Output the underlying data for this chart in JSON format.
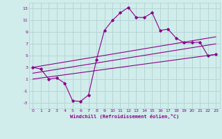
{
  "bg_color": "#d0eceb",
  "grid_color": "#b0d4d3",
  "line_color": "#880088",
  "xlabel": "Windchill (Refroidissement éolien,°C)",
  "xlim": [
    -0.5,
    23.5
  ],
  "ylim": [
    -4.0,
    14.0
  ],
  "yticks": [
    -3,
    -1,
    1,
    3,
    5,
    7,
    9,
    11,
    13
  ],
  "xticks": [
    0,
    1,
    2,
    3,
    4,
    5,
    6,
    7,
    8,
    9,
    10,
    11,
    12,
    13,
    14,
    15,
    16,
    17,
    18,
    19,
    20,
    21,
    22,
    23
  ],
  "curve1_x": [
    0,
    1,
    2,
    3,
    4,
    5,
    6,
    7,
    8,
    9,
    10,
    11,
    12,
    13,
    14,
    15,
    16,
    17,
    18,
    19,
    20,
    21,
    22,
    23
  ],
  "curve1_y": [
    3.0,
    2.7,
    1.0,
    1.2,
    0.3,
    -2.7,
    -2.8,
    -1.7,
    4.3,
    9.3,
    11.0,
    12.3,
    13.2,
    11.5,
    11.5,
    12.3,
    9.3,
    9.5,
    8.0,
    7.2,
    7.2,
    7.3,
    5.0,
    5.2
  ],
  "line1_x": [
    0,
    23
  ],
  "line1_y": [
    3.0,
    8.2
  ],
  "line2_x": [
    0,
    23
  ],
  "line2_y": [
    2.0,
    7.0
  ],
  "line3_x": [
    0,
    23
  ],
  "line3_y": [
    1.0,
    5.2
  ]
}
